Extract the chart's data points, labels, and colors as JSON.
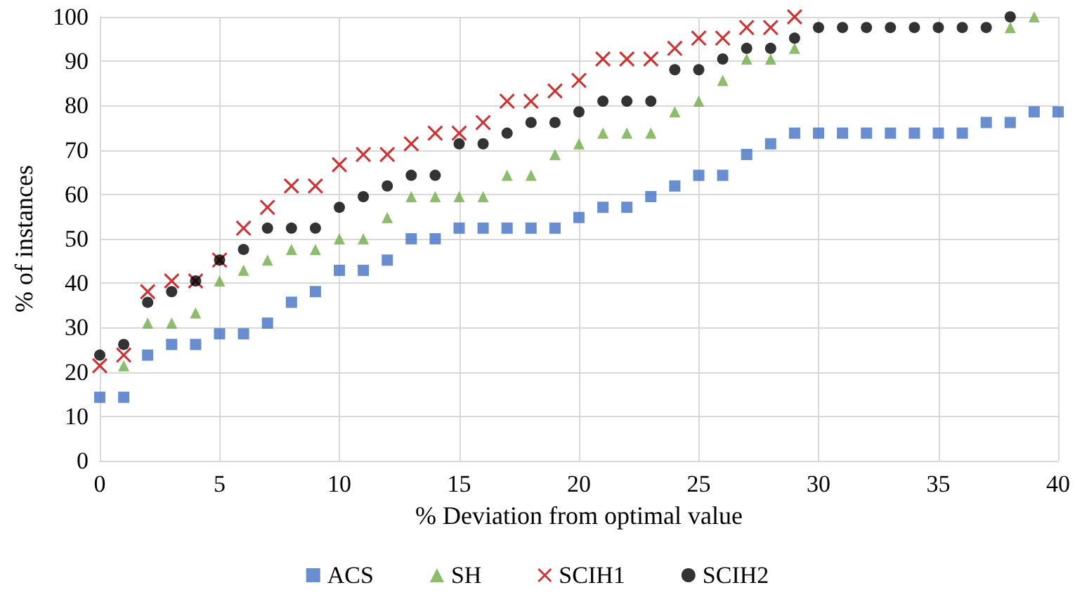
{
  "chart_data": {
    "type": "scatter",
    "xlabel": "% Deviation from optimal value",
    "ylabel": "% of instances",
    "x": [
      0,
      1,
      2,
      3,
      4,
      5,
      6,
      7,
      8,
      9,
      10,
      11,
      12,
      13,
      14,
      15,
      16,
      17,
      18,
      19,
      20,
      21,
      22,
      23,
      24,
      25,
      26,
      27,
      28,
      29,
      30,
      31,
      32,
      33,
      34,
      35,
      36,
      37,
      38,
      39,
      40
    ],
    "series": [
      {
        "name": "ACS",
        "color": "#4472c4",
        "marker": "square",
        "values": [
          14.3,
          14.3,
          23.8,
          26.2,
          26.2,
          28.6,
          28.6,
          31,
          35.7,
          38.1,
          42.9,
          42.9,
          45.2,
          50,
          50,
          52.4,
          52.4,
          52.4,
          52.4,
          52.4,
          54.8,
          57.1,
          57.1,
          59.5,
          61.9,
          64.3,
          64.3,
          69,
          71.4,
          73.8,
          73.8,
          73.8,
          73.8,
          73.8,
          73.8,
          73.8,
          73.8,
          76.2,
          76.2,
          78.6,
          78.6
        ]
      },
      {
        "name": "SH",
        "color": "#70ad47",
        "marker": "triangle",
        "values": [
          null,
          21.4,
          31,
          31,
          33.3,
          40.5,
          42.9,
          45.2,
          47.6,
          47.6,
          50,
          50,
          54.8,
          59.5,
          59.5,
          59.5,
          59.5,
          64.3,
          64.3,
          69,
          71.4,
          73.8,
          73.8,
          73.8,
          78.6,
          81,
          85.7,
          90.5,
          90.5,
          92.9,
          null,
          null,
          null,
          null,
          null,
          null,
          null,
          null,
          97.6,
          100,
          null
        ]
      },
      {
        "name": "SCIH1",
        "color": "#c00000",
        "marker": "cross",
        "values": [
          21.4,
          23.8,
          38.1,
          40.5,
          40.5,
          45.2,
          52.4,
          57.1,
          61.9,
          61.9,
          66.7,
          69,
          69,
          71.4,
          73.8,
          73.8,
          76.2,
          81,
          81,
          83.3,
          85.7,
          90.5,
          90.5,
          90.5,
          92.9,
          95.2,
          95.2,
          97.6,
          97.6,
          100,
          null,
          null,
          null,
          null,
          null,
          null,
          null,
          null,
          null,
          null,
          null
        ]
      },
      {
        "name": "SCIH2",
        "color": "#000000",
        "marker": "circle",
        "values": [
          23.8,
          26.2,
          35.7,
          38.1,
          40.5,
          45.2,
          47.6,
          52.4,
          52.4,
          52.4,
          57.1,
          59.5,
          61.9,
          64.3,
          64.3,
          71.4,
          71.4,
          73.8,
          76.2,
          76.2,
          78.6,
          81,
          81,
          81,
          88.1,
          88.1,
          90.5,
          92.9,
          92.9,
          95.2,
          97.6,
          97.6,
          97.6,
          97.6,
          97.6,
          97.6,
          97.6,
          97.6,
          100,
          null,
          null
        ]
      }
    ],
    "xlim": [
      0,
      40
    ],
    "xticks": [
      0,
      5,
      10,
      15,
      20,
      25,
      30,
      35,
      40
    ],
    "ylim": [
      0,
      100
    ],
    "yticks": [
      0,
      10,
      20,
      30,
      40,
      50,
      60,
      70,
      80,
      90,
      100
    ],
    "grid": true,
    "legend": "bottom"
  }
}
